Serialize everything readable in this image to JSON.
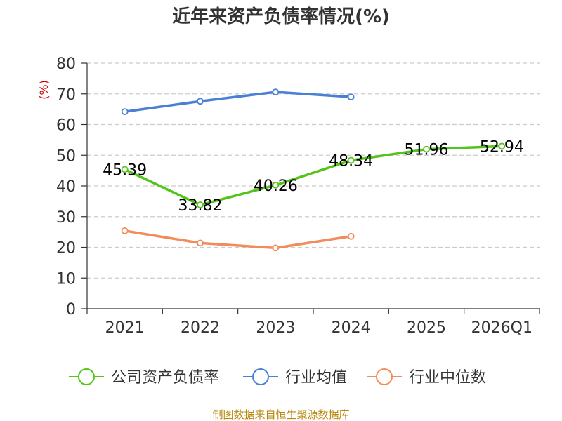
{
  "chart_data": {
    "type": "line",
    "title": "近年来资产负债率情况(%)",
    "ylabel": "(%)",
    "xlabel": "",
    "categories": [
      "2021",
      "2022",
      "2023",
      "2024",
      "2025",
      "2026Q1"
    ],
    "ylim": [
      0,
      80
    ],
    "yticks": [
      0,
      10,
      20,
      30,
      40,
      50,
      60,
      70,
      80
    ],
    "grid": true,
    "legend_position": "bottom",
    "series": [
      {
        "name": "公司资产负债率",
        "color": "#52c41a",
        "values": [
          45.39,
          33.82,
          40.26,
          48.34,
          51.96,
          52.94
        ],
        "labels": [
          "45.39",
          "33.82",
          "40.26",
          "48.34",
          "51.96",
          "52.94"
        ]
      },
      {
        "name": "行业均值",
        "color": "#4a7fd6",
        "values": [
          64.2,
          67.6,
          70.6,
          69.0,
          null,
          null
        ]
      },
      {
        "name": "行业中位数",
        "color": "#f28c5a",
        "values": [
          25.4,
          21.4,
          19.8,
          23.6,
          null,
          null
        ]
      }
    ]
  },
  "footer": "制图数据来自恒生聚源数据库"
}
